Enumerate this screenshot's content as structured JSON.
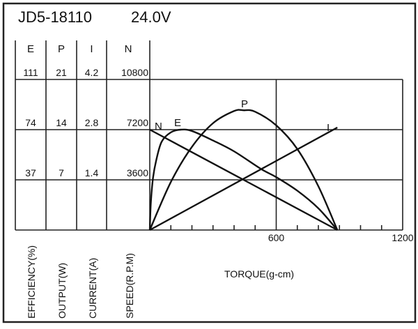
{
  "chart_data": {
    "type": "line",
    "title": "JD5-18110",
    "voltage": "24.0V",
    "xlabel": "TORQUE(g-cm)",
    "xlim": [
      0,
      1200
    ],
    "xticks": [
      "600",
      "1200"
    ],
    "grid": true,
    "axes": [
      {
        "key": "E",
        "header": "E",
        "label": "EFFICIENCY(%)",
        "ticks": [
          "37",
          "74",
          "111"
        ],
        "max": 111
      },
      {
        "key": "P",
        "header": "P",
        "label": "OUTPUT(W)",
        "ticks": [
          "7",
          "14",
          "21"
        ],
        "max": 21
      },
      {
        "key": "I",
        "header": "I",
        "label": "CURRENT(A)",
        "ticks": [
          "1.4",
          "2.8",
          "4.2"
        ],
        "max": 4.2
      },
      {
        "key": "N",
        "header": "N",
        "label": "SPEED(R.P.M)",
        "ticks": [
          "3600",
          "7200",
          "10800"
        ],
        "max": 10800
      }
    ],
    "series": [
      {
        "name": "N",
        "x": [
          0,
          890
        ],
        "y": [
          7200,
          0
        ]
      },
      {
        "name": "I",
        "x": [
          0,
          890
        ],
        "y": [
          0,
          2.86
        ]
      },
      {
        "name": "P",
        "x": [
          0,
          100,
          200,
          300,
          400,
          445,
          500,
          600,
          700,
          800,
          890
        ],
        "y": [
          0,
          6.7,
          11.6,
          14.9,
          16.6,
          16.7,
          16.5,
          14.6,
          11.3,
          6.1,
          0
        ]
      },
      {
        "name": "E",
        "x": [
          0,
          5,
          15,
          30,
          56,
          100,
          148,
          200,
          300,
          400,
          528,
          600,
          700,
          800,
          890
        ],
        "y": [
          0,
          20,
          38,
          51,
          65,
          72,
          74,
          73,
          66,
          58,
          45,
          39,
          29,
          16,
          0
        ]
      }
    ]
  }
}
